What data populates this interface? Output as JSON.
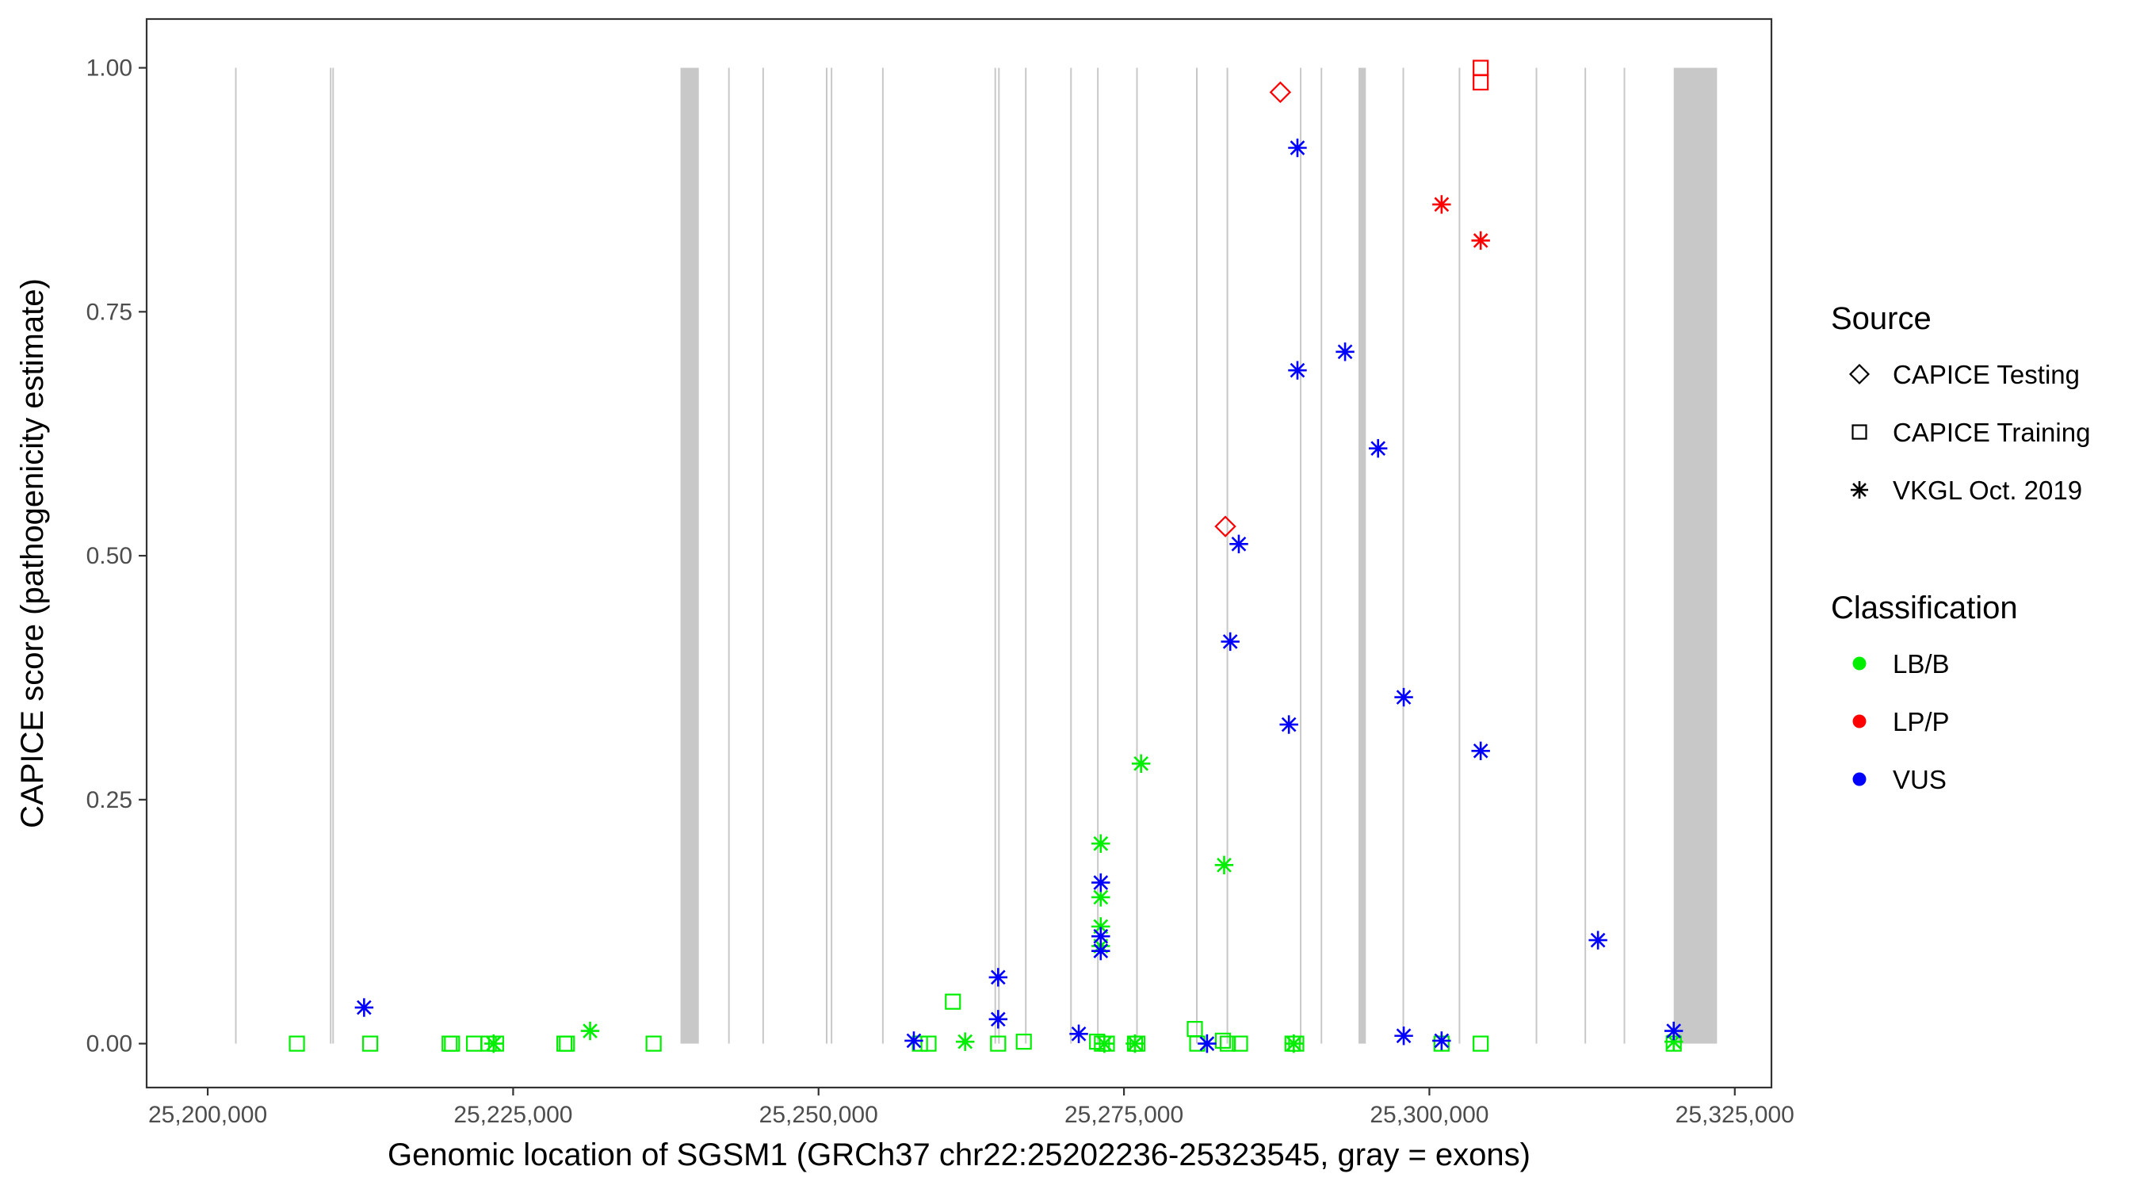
{
  "chart_data": {
    "type": "scatter",
    "title": "",
    "xlabel": "Genomic location of SGSM1 (GRCh37 chr22:25202236-25323545, gray = exons)",
    "ylabel": "CAPICE score (pathogenicity estimate)",
    "xlim": [
      25195000,
      25328000
    ],
    "ylim": [
      -0.045,
      1.05
    ],
    "x_ticks": [
      25200000,
      25225000,
      25250000,
      25275000,
      25300000,
      25325000
    ],
    "x_tick_labels": [
      "25,200,000",
      "25,225,000",
      "25,250,000",
      "25,275,000",
      "25,300,000",
      "25,325,000"
    ],
    "y_ticks": [
      0,
      0.25,
      0.5,
      0.75,
      1.0
    ],
    "y_tick_labels": [
      "0.00",
      "0.25",
      "0.50",
      "0.75",
      "1.00"
    ],
    "grid": false,
    "legend_position": "right",
    "exons": [
      [
        25202236,
        25202300
      ],
      [
        25210000,
        25210060
      ],
      [
        25210200,
        25210260
      ],
      [
        25238700,
        25240200
      ],
      [
        25242600,
        25242660
      ],
      [
        25245400,
        25245460
      ],
      [
        25250600,
        25250660
      ],
      [
        25251000,
        25251060
      ],
      [
        25255200,
        25255260
      ],
      [
        25264400,
        25264460
      ],
      [
        25264700,
        25264760
      ],
      [
        25266900,
        25266960
      ],
      [
        25270600,
        25270660
      ],
      [
        25272800,
        25272860
      ],
      [
        25276000,
        25276060
      ],
      [
        25280900,
        25280960
      ],
      [
        25283400,
        25283460
      ],
      [
        25289400,
        25289460
      ],
      [
        25291100,
        25291160
      ],
      [
        25294200,
        25294800
      ],
      [
        25297800,
        25297860
      ],
      [
        25302400,
        25302460
      ],
      [
        25308700,
        25308760
      ],
      [
        25312700,
        25312760
      ],
      [
        25315900,
        25315960
      ],
      [
        25320000,
        25323545
      ]
    ],
    "legend": {
      "source": {
        "title": "Source",
        "items": [
          {
            "label": "CAPICE Testing",
            "shape": "diamond"
          },
          {
            "label": "CAPICE Training",
            "shape": "square"
          },
          {
            "label": "VKGL Oct. 2019",
            "shape": "asterisk"
          }
        ]
      },
      "classification": {
        "title": "Classification",
        "items": [
          {
            "label": "LB/B",
            "color": "#00ee00"
          },
          {
            "label": "LP/P",
            "color": "#ff0000"
          },
          {
            "label": "VUS",
            "color": "#0000ff"
          }
        ]
      }
    },
    "colors": {
      "LB/B": "#00ee00",
      "LP/P": "#ff0000",
      "VUS": "#0000ff"
    },
    "points": [
      {
        "x": 25207300,
        "y": 0.0,
        "source": "CAPICE Training",
        "class": "LB/B"
      },
      {
        "x": 25213300,
        "y": 0.0,
        "source": "CAPICE Training",
        "class": "LB/B"
      },
      {
        "x": 25219800,
        "y": 0.0,
        "source": "CAPICE Training",
        "class": "LB/B"
      },
      {
        "x": 25220000,
        "y": 0.0,
        "source": "CAPICE Training",
        "class": "LB/B"
      },
      {
        "x": 25221800,
        "y": 0.0,
        "source": "CAPICE Training",
        "class": "LB/B"
      },
      {
        "x": 25223000,
        "y": 0.0,
        "source": "CAPICE Training",
        "class": "LB/B"
      },
      {
        "x": 25223600,
        "y": 0.0,
        "source": "CAPICE Training",
        "class": "LB/B"
      },
      {
        "x": 25229200,
        "y": 0.0,
        "source": "CAPICE Training",
        "class": "LB/B"
      },
      {
        "x": 25229400,
        "y": 0.0,
        "source": "CAPICE Training",
        "class": "LB/B"
      },
      {
        "x": 25236500,
        "y": 0.0,
        "source": "CAPICE Training",
        "class": "LB/B"
      },
      {
        "x": 25258300,
        "y": 0.0,
        "source": "CAPICE Training",
        "class": "LB/B"
      },
      {
        "x": 25259000,
        "y": 0.0,
        "source": "CAPICE Training",
        "class": "LB/B"
      },
      {
        "x": 25261000,
        "y": 0.043,
        "source": "CAPICE Training",
        "class": "LB/B"
      },
      {
        "x": 25264700,
        "y": 0.0,
        "source": "CAPICE Training",
        "class": "LB/B"
      },
      {
        "x": 25266800,
        "y": 0.002,
        "source": "CAPICE Training",
        "class": "LB/B"
      },
      {
        "x": 25272800,
        "y": 0.002,
        "source": "CAPICE Training",
        "class": "LB/B"
      },
      {
        "x": 25273200,
        "y": 0.0,
        "source": "CAPICE Training",
        "class": "LB/B"
      },
      {
        "x": 25273600,
        "y": 0.0,
        "source": "CAPICE Training",
        "class": "LB/B"
      },
      {
        "x": 25275900,
        "y": 0.0,
        "source": "CAPICE Training",
        "class": "LB/B"
      },
      {
        "x": 25276100,
        "y": 0.0,
        "source": "CAPICE Training",
        "class": "LB/B"
      },
      {
        "x": 25280800,
        "y": 0.015,
        "source": "CAPICE Training",
        "class": "LB/B"
      },
      {
        "x": 25281000,
        "y": 0.0,
        "source": "CAPICE Training",
        "class": "LB/B"
      },
      {
        "x": 25283100,
        "y": 0.003,
        "source": "CAPICE Training",
        "class": "LB/B"
      },
      {
        "x": 25283500,
        "y": 0.0,
        "source": "CAPICE Training",
        "class": "LB/B"
      },
      {
        "x": 25284500,
        "y": 0.0,
        "source": "CAPICE Training",
        "class": "LB/B"
      },
      {
        "x": 25288800,
        "y": 0.0,
        "source": "CAPICE Training",
        "class": "LB/B"
      },
      {
        "x": 25289100,
        "y": 0.0,
        "source": "CAPICE Training",
        "class": "LB/B"
      },
      {
        "x": 25301000,
        "y": 0.0,
        "source": "CAPICE Training",
        "class": "LB/B"
      },
      {
        "x": 25304200,
        "y": 0.0,
        "source": "CAPICE Training",
        "class": "LB/B"
      },
      {
        "x": 25320000,
        "y": 0.0,
        "source": "CAPICE Training",
        "class": "LB/B"
      },
      {
        "x": 25304200,
        "y": 1.0,
        "source": "CAPICE Training",
        "class": "LP/P"
      },
      {
        "x": 25304200,
        "y": 0.985,
        "source": "CAPICE Training",
        "class": "LP/P"
      },
      {
        "x": 25287800,
        "y": 0.975,
        "source": "CAPICE Testing",
        "class": "LP/P"
      },
      {
        "x": 25283300,
        "y": 0.53,
        "source": "CAPICE Testing",
        "class": "LP/P"
      },
      {
        "x": 25301000,
        "y": 0.86,
        "source": "VKGL Oct. 2019",
        "class": "LP/P"
      },
      {
        "x": 25304200,
        "y": 0.823,
        "source": "VKGL Oct. 2019",
        "class": "LP/P"
      },
      {
        "x": 25223400,
        "y": 0.0,
        "source": "VKGL Oct. 2019",
        "class": "LB/B"
      },
      {
        "x": 25231300,
        "y": 0.013,
        "source": "VKGL Oct. 2019",
        "class": "LB/B"
      },
      {
        "x": 25262000,
        "y": 0.002,
        "source": "VKGL Oct. 2019",
        "class": "LB/B"
      },
      {
        "x": 25273100,
        "y": 0.205,
        "source": "VKGL Oct. 2019",
        "class": "LB/B"
      },
      {
        "x": 25273100,
        "y": 0.15,
        "source": "VKGL Oct. 2019",
        "class": "LB/B"
      },
      {
        "x": 25273100,
        "y": 0.12,
        "source": "VKGL Oct. 2019",
        "class": "LB/B"
      },
      {
        "x": 25273100,
        "y": 0.1,
        "source": "VKGL Oct. 2019",
        "class": "LB/B"
      },
      {
        "x": 25273400,
        "y": 0.0,
        "source": "VKGL Oct. 2019",
        "class": "LB/B"
      },
      {
        "x": 25275900,
        "y": 0.0,
        "source": "VKGL Oct. 2019",
        "class": "LB/B"
      },
      {
        "x": 25276400,
        "y": 0.287,
        "source": "VKGL Oct. 2019",
        "class": "LB/B"
      },
      {
        "x": 25283200,
        "y": 0.183,
        "source": "VKGL Oct. 2019",
        "class": "LB/B"
      },
      {
        "x": 25288900,
        "y": 0.0,
        "source": "VKGL Oct. 2019",
        "class": "LB/B"
      },
      {
        "x": 25320000,
        "y": 0.002,
        "source": "VKGL Oct. 2019",
        "class": "LB/B"
      },
      {
        "x": 25212800,
        "y": 0.037,
        "source": "VKGL Oct. 2019",
        "class": "VUS"
      },
      {
        "x": 25257800,
        "y": 0.003,
        "source": "VKGL Oct. 2019",
        "class": "VUS"
      },
      {
        "x": 25264700,
        "y": 0.068,
        "source": "VKGL Oct. 2019",
        "class": "VUS"
      },
      {
        "x": 25264700,
        "y": 0.025,
        "source": "VKGL Oct. 2019",
        "class": "VUS"
      },
      {
        "x": 25271300,
        "y": 0.01,
        "source": "VKGL Oct. 2019",
        "class": "VUS"
      },
      {
        "x": 25273100,
        "y": 0.165,
        "source": "VKGL Oct. 2019",
        "class": "VUS"
      },
      {
        "x": 25273100,
        "y": 0.11,
        "source": "VKGL Oct. 2019",
        "class": "VUS"
      },
      {
        "x": 25273100,
        "y": 0.095,
        "source": "VKGL Oct. 2019",
        "class": "VUS"
      },
      {
        "x": 25281800,
        "y": 0.0,
        "source": "VKGL Oct. 2019",
        "class": "VUS"
      },
      {
        "x": 25283700,
        "y": 0.412,
        "source": "VKGL Oct. 2019",
        "class": "VUS"
      },
      {
        "x": 25284400,
        "y": 0.512,
        "source": "VKGL Oct. 2019",
        "class": "VUS"
      },
      {
        "x": 25288500,
        "y": 0.327,
        "source": "VKGL Oct. 2019",
        "class": "VUS"
      },
      {
        "x": 25289200,
        "y": 0.918,
        "source": "VKGL Oct. 2019",
        "class": "VUS"
      },
      {
        "x": 25289200,
        "y": 0.69,
        "source": "VKGL Oct. 2019",
        "class": "VUS"
      },
      {
        "x": 25293100,
        "y": 0.709,
        "source": "VKGL Oct. 2019",
        "class": "VUS"
      },
      {
        "x": 25295800,
        "y": 0.61,
        "source": "VKGL Oct. 2019",
        "class": "VUS"
      },
      {
        "x": 25297900,
        "y": 0.355,
        "source": "VKGL Oct. 2019",
        "class": "VUS"
      },
      {
        "x": 25297900,
        "y": 0.008,
        "source": "VKGL Oct. 2019",
        "class": "VUS"
      },
      {
        "x": 25301000,
        "y": 0.003,
        "source": "VKGL Oct. 2019",
        "class": "VUS"
      },
      {
        "x": 25304200,
        "y": 0.3,
        "source": "VKGL Oct. 2019",
        "class": "VUS"
      },
      {
        "x": 25313800,
        "y": 0.106,
        "source": "VKGL Oct. 2019",
        "class": "VUS"
      },
      {
        "x": 25320000,
        "y": 0.013,
        "source": "VKGL Oct. 2019",
        "class": "VUS"
      }
    ]
  }
}
